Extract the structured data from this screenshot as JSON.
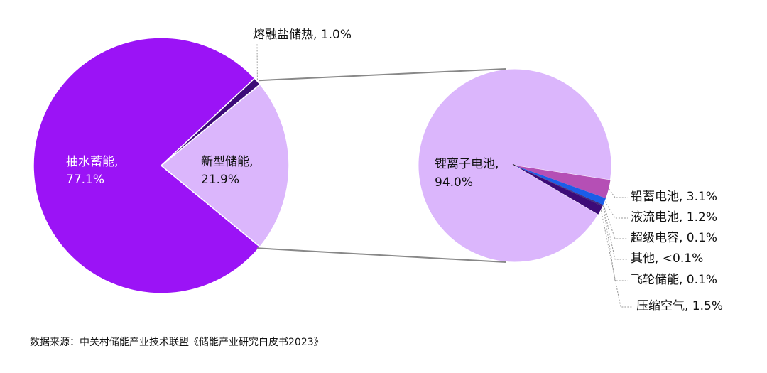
{
  "chart_data": [
    {
      "type": "pie",
      "slices": [
        {
          "label": "抽水蓄能",
          "value": 77.1,
          "label_text": "抽水蓄能,",
          "pct_text": "77.1%",
          "color": "#9b13f6"
        },
        {
          "label": "新型储能",
          "value": 21.9,
          "label_text": "新型储能,",
          "pct_text": "21.9%",
          "color": "#dbb6fc"
        },
        {
          "label": "熔融盐储热",
          "value": 1.0,
          "label_text": "熔融盐储热, 1.0%",
          "color": "#3d0b78"
        }
      ]
    },
    {
      "type": "pie",
      "slices": [
        {
          "label": "锂离子电池",
          "value": 94.0,
          "label_text": "锂离子电池,",
          "pct_text": "94.0%",
          "color": "#dbb6fc"
        },
        {
          "label": "铅蓄电池",
          "value": 3.1,
          "label_text": "铅蓄电池, 3.1%",
          "color": "#b54fb5"
        },
        {
          "label": "液流电池",
          "value": 1.2,
          "label_text": "液流电池, 1.2%",
          "color": "#1b5de8"
        },
        {
          "label": "超级电容",
          "value": 0.1,
          "label_text": "超级电容, 0.1%",
          "color": "#2a0a66"
        },
        {
          "label": "其他",
          "value": 0.05,
          "label_text": "其他, <0.1%",
          "color": "#2a0a66"
        },
        {
          "label": "飞轮储能",
          "value": 0.1,
          "label_text": "飞轮储能, 0.1%",
          "color": "#2a0a66"
        },
        {
          "label": "压缩空气",
          "value": 1.5,
          "label_text": "压缩空气, 1.5%",
          "color": "#3d0b78"
        }
      ]
    }
  ],
  "source": "数据来源：中关村储能产业技术联盟《储能产业研究白皮书2023》"
}
